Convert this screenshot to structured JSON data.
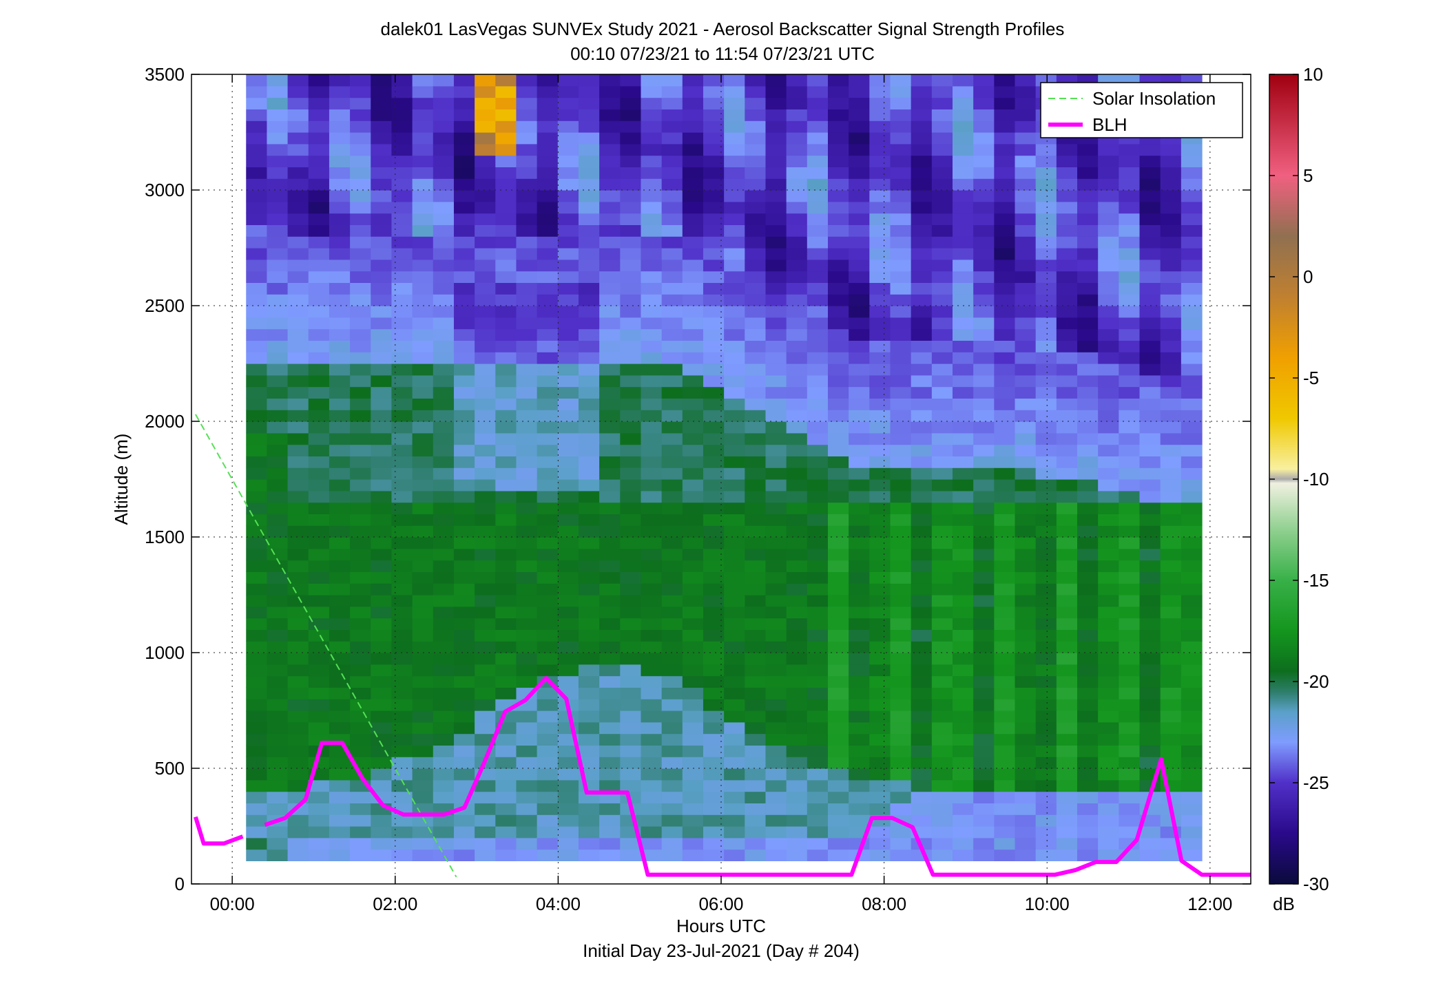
{
  "chart_data": {
    "type": "heatmap",
    "title": "dalek01 LasVegas SUNVEx Study 2021 - Aerosol Backscatter Signal Strength Profiles",
    "subtitle": "00:10 07/23/21 to 11:54 07/23/21  UTC",
    "xlabel": "Hours UTC",
    "xlabel2": "Initial Day 23-Jul-2021 (Day # 204)",
    "ylabel": "Altitude (m)",
    "x_ticks": [
      "00:00",
      "02:00",
      "04:00",
      "06:00",
      "08:00",
      "10:00",
      "12:00"
    ],
    "x_tick_hours": [
      0,
      2,
      4,
      6,
      8,
      10,
      12
    ],
    "xlim_hours": [
      -0.5,
      12.5
    ],
    "y_ticks": [
      "0",
      "500",
      "1000",
      "1500",
      "2000",
      "2500",
      "3000",
      "3500"
    ],
    "y_tick_values": [
      0,
      500,
      1000,
      1500,
      2000,
      2500,
      3000,
      3500
    ],
    "ylim": [
      0,
      3500
    ],
    "grid": true,
    "legend_position": "top-right",
    "colorbar": {
      "label": "dB",
      "ticks": [
        "10",
        "5",
        "0",
        "-5",
        "-10",
        "-15",
        "-20",
        "-25",
        "-30"
      ],
      "tick_values": [
        10,
        5,
        0,
        -5,
        -10,
        -15,
        -20,
        -25,
        -30
      ],
      "range": [
        -30,
        10
      ],
      "stops": [
        {
          "v": -30,
          "color": "#0a0a3c"
        },
        {
          "v": -27.5,
          "color": "#2a0a8a"
        },
        {
          "v": -25,
          "color": "#5030c8"
        },
        {
          "v": -23,
          "color": "#7f9cff"
        },
        {
          "v": -21.5,
          "color": "#5aa0c8"
        },
        {
          "v": -20.5,
          "color": "#2d7d6a"
        },
        {
          "v": -19.5,
          "color": "#0d6e1e"
        },
        {
          "v": -17.5,
          "color": "#14961e"
        },
        {
          "v": -15,
          "color": "#38b048"
        },
        {
          "v": -12.5,
          "color": "#90d090"
        },
        {
          "v": -10.2,
          "color": "#f0f0e0"
        },
        {
          "v": -10,
          "color": "#aaaaaa"
        },
        {
          "v": -9.5,
          "color": "#f8f0a0"
        },
        {
          "v": -7,
          "color": "#f0c800"
        },
        {
          "v": -4,
          "color": "#f0a000"
        },
        {
          "v": -1,
          "color": "#c08030"
        },
        {
          "v": 2,
          "color": "#907050"
        },
        {
          "v": 5,
          "color": "#f06080"
        },
        {
          "v": 10,
          "color": "#a00010"
        }
      ]
    },
    "heatmap": {
      "x_start_hour": 0.17,
      "x_end_hour": 11.9,
      "y_start_m": 100,
      "y_end_m": 3500,
      "y_step_m": 50,
      "columns": 46
    },
    "series": [
      {
        "name": "Solar Insolation",
        "style": "dashed",
        "color": "#55e055",
        "x": [
          -0.45,
          2.75
        ],
        "y": [
          2030,
          30
        ]
      },
      {
        "name": "BLH",
        "style": "solid",
        "color": "#ff00ff",
        "segments": [
          {
            "x": [
              -0.45,
              -0.35,
              -0.1,
              0.13
            ],
            "y": [
              290,
              175,
              175,
              205
            ]
          },
          {
            "x": [
              0.4,
              0.65,
              0.9,
              1.1,
              1.35,
              1.6,
              1.85,
              2.1,
              2.35,
              2.6,
              2.85,
              3.1,
              3.35,
              3.6,
              3.85,
              4.1,
              4.35,
              4.6,
              4.85,
              5.1,
              5.35,
              5.6,
              5.85,
              6.1,
              6.35,
              6.6,
              6.85,
              7.1,
              7.35,
              7.6,
              7.85,
              8.1,
              8.35,
              8.6,
              8.85,
              9.1,
              9.35,
              9.6,
              9.85,
              10.1,
              10.35,
              10.6,
              10.85,
              11.1,
              11.4,
              11.65,
              11.9,
              12.2,
              12.5
            ],
            "y": [
              255,
              285,
              365,
              610,
              610,
              455,
              340,
              300,
              300,
              300,
              330,
              530,
              745,
              795,
              890,
              800,
              395,
              395,
              395,
              40,
              40,
              40,
              40,
              40,
              40,
              40,
              40,
              40,
              40,
              40,
              285,
              285,
              245,
              40,
              40,
              40,
              40,
              40,
              40,
              40,
              60,
              95,
              95,
              190,
              540,
              100,
              40,
              40,
              40
            ]
          }
        ]
      }
    ]
  }
}
